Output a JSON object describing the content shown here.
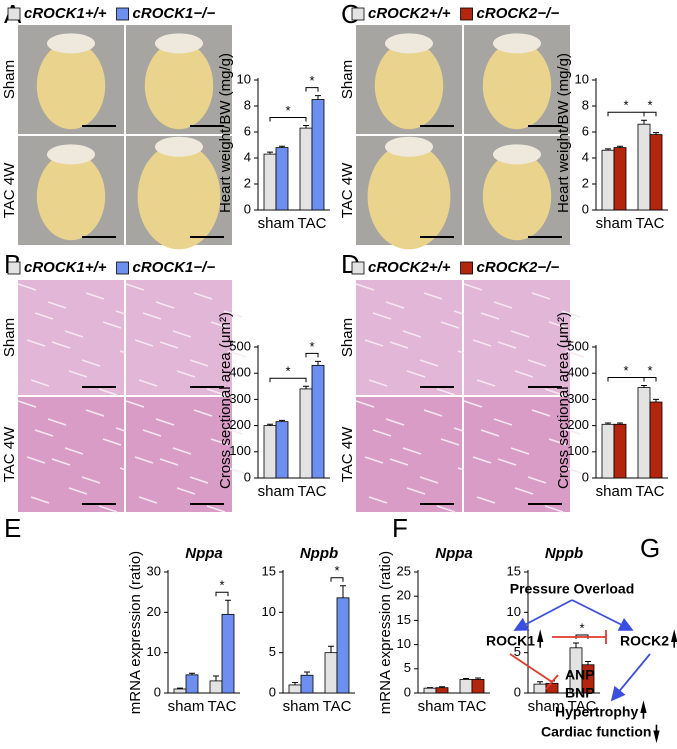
{
  "panels": [
    {
      "label": "A",
      "row_labels": [
        "Sham",
        "TAC 4W"
      ]
    },
    {
      "label": "C",
      "row_labels": [
        "Sham",
        "TAC 4W"
      ]
    },
    {
      "label": "B",
      "row_labels": [
        "Sham",
        "TAC 4W"
      ]
    },
    {
      "label": "D",
      "row_labels": [
        "Sham",
        "TAC 4W"
      ]
    },
    {
      "label": "E"
    },
    {
      "label": "F"
    },
    {
      "label": "G"
    }
  ],
  "chart_data": [
    {
      "type": "bar",
      "ylabel": "Heart weight/BW (mg/g)",
      "categories": [
        "sham",
        "TAC"
      ],
      "ylim": [
        0,
        10
      ],
      "yticks": [
        0,
        2,
        4,
        6,
        8,
        10
      ],
      "series": [
        {
          "name": "cROCK1+/+",
          "color": "#e3e3e3",
          "values": [
            4.3,
            6.3
          ],
          "errors": [
            0.15,
            0.2
          ]
        },
        {
          "name": "cROCK1−/−",
          "color": "#6d8ff0",
          "values": [
            4.8,
            8.5
          ],
          "errors": [
            0.1,
            0.3
          ]
        }
      ],
      "annotations": [
        "*",
        "*"
      ]
    },
    {
      "type": "bar",
      "ylabel": "Heart weight/BW (mg/g)",
      "categories": [
        "sham",
        "TAC"
      ],
      "ylim": [
        0,
        10
      ],
      "yticks": [
        0,
        2,
        4,
        6,
        8,
        10
      ],
      "series": [
        {
          "name": "cROCK2+/+",
          "color": "#e3e3e3",
          "values": [
            4.6,
            6.6
          ],
          "errors": [
            0.1,
            0.3
          ]
        },
        {
          "name": "cROCK2−/−",
          "color": "#b3260d",
          "values": [
            4.8,
            5.8
          ],
          "errors": [
            0.1,
            0.15
          ]
        }
      ],
      "annotations": [
        "*",
        "*"
      ]
    },
    {
      "type": "bar",
      "ylabel": "Cross sectional area (μm²)",
      "categories": [
        "sham",
        "TAC"
      ],
      "ylim": [
        0,
        500
      ],
      "yticks": [
        0,
        100,
        200,
        300,
        400,
        500
      ],
      "series": [
        {
          "name": "cROCK1+/+",
          "color": "#e3e3e3",
          "values": [
            200,
            340
          ],
          "errors": [
            5,
            10
          ]
        },
        {
          "name": "cROCK1−/−",
          "color": "#6d8ff0",
          "values": [
            215,
            430
          ],
          "errors": [
            5,
            15
          ]
        }
      ],
      "annotations": [
        "*",
        "*"
      ]
    },
    {
      "type": "bar",
      "ylabel": "Cross sectional area (μm²)",
      "categories": [
        "sham",
        "TAC"
      ],
      "ylim": [
        0,
        500
      ],
      "yticks": [
        0,
        100,
        200,
        300,
        400,
        500
      ],
      "series": [
        {
          "name": "cROCK2+/+",
          "color": "#e3e3e3",
          "values": [
            205,
            345
          ],
          "errors": [
            5,
            8
          ]
        },
        {
          "name": "cROCK2−/−",
          "color": "#b3260d",
          "values": [
            205,
            290
          ],
          "errors": [
            5,
            10
          ]
        }
      ],
      "annotations": [
        "*",
        "*"
      ]
    },
    {
      "type": "bar",
      "title": "Nppa",
      "ylabel": "mRNA expression (ratio)",
      "categories": [
        "sham",
        "TAC"
      ],
      "ylim": [
        0,
        30
      ],
      "yticks": [
        0,
        10,
        20,
        30
      ],
      "series": [
        {
          "color": "#e3e3e3",
          "values": [
            1,
            3
          ],
          "errors": [
            0.2,
            1.2
          ]
        },
        {
          "color": "#6d8ff0",
          "values": [
            4.5,
            19.5
          ],
          "errors": [
            0.4,
            3.5
          ]
        }
      ],
      "annotations": [
        "*"
      ]
    },
    {
      "type": "bar",
      "title": "Nppb",
      "categories": [
        "sham",
        "TAC"
      ],
      "ylim": [
        0,
        15
      ],
      "yticks": [
        0,
        5,
        10,
        15
      ],
      "series": [
        {
          "color": "#e3e3e3",
          "values": [
            1,
            5
          ],
          "errors": [
            0.3,
            0.8
          ]
        },
        {
          "color": "#6d8ff0",
          "values": [
            2.2,
            11.8
          ],
          "errors": [
            0.4,
            1.5
          ]
        }
      ],
      "annotations": [
        "*"
      ]
    },
    {
      "type": "bar",
      "title": "Nppa",
      "ylabel": "mRNA expression (ratio)",
      "categories": [
        "sham",
        "TAC"
      ],
      "ylim": [
        0,
        25
      ],
      "yticks": [
        0,
        5,
        10,
        15,
        20,
        25
      ],
      "series": [
        {
          "color": "#e3e3e3",
          "values": [
            1,
            2.8
          ],
          "errors": [
            0.1,
            0.2
          ]
        },
        {
          "color": "#b3260d",
          "values": [
            1.1,
            2.8
          ],
          "errors": [
            0.2,
            0.3
          ]
        }
      ],
      "annotations": []
    },
    {
      "type": "bar",
      "title": "Nppb",
      "categories": [
        "sham",
        "TAC"
      ],
      "ylim": [
        0,
        15
      ],
      "yticks": [
        0,
        5,
        10,
        15
      ],
      "series": [
        {
          "color": "#e3e3e3",
          "values": [
            1.1,
            5.6
          ],
          "errors": [
            0.3,
            0.6
          ]
        },
        {
          "color": "#b3260d",
          "values": [
            1.2,
            3.5
          ],
          "errors": [
            0.3,
            0.4
          ]
        }
      ],
      "annotations": [
        "*"
      ]
    }
  ],
  "diagram": {
    "nodes": [
      "Pressure Overload",
      "ROCK1",
      "ROCK2",
      "ANP",
      "BNP",
      "Hypertrophy",
      "Cardiac function"
    ]
  }
}
